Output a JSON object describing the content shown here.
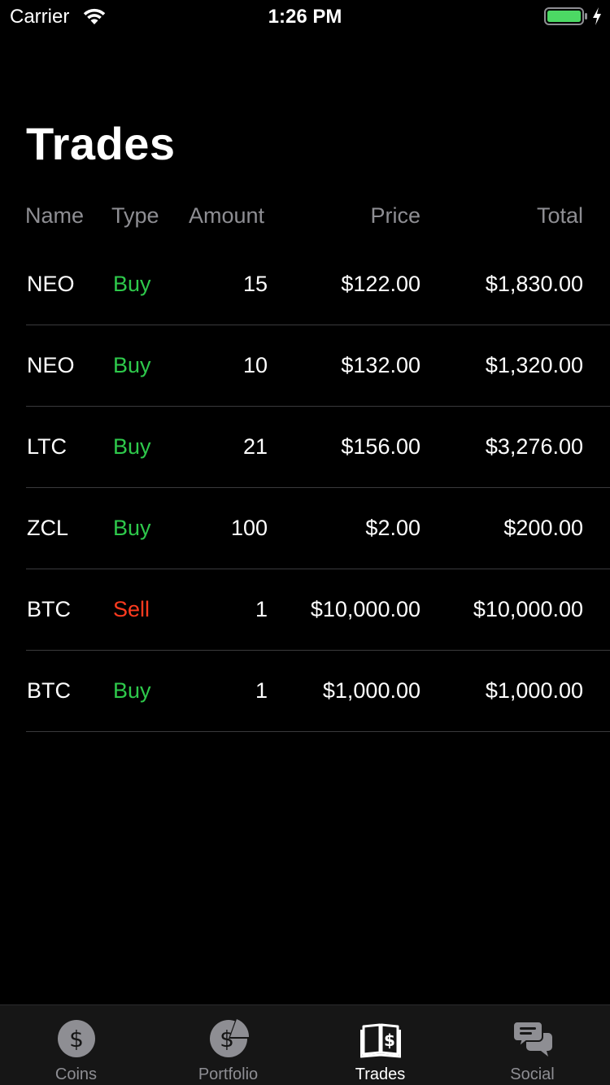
{
  "status_bar": {
    "carrier": "Carrier",
    "time": "1:26 PM",
    "battery_color": "#4cd964"
  },
  "page": {
    "title": "Trades"
  },
  "table": {
    "headers": {
      "name": "Name",
      "type": "Type",
      "amount": "Amount",
      "price": "Price",
      "total": "Total"
    },
    "rows": [
      {
        "name": "NEO",
        "type": "Buy",
        "amount": "15",
        "price": "$122.00",
        "total": "$1,830.00"
      },
      {
        "name": "NEO",
        "type": "Buy",
        "amount": "10",
        "price": "$132.00",
        "total": "$1,320.00"
      },
      {
        "name": "LTC",
        "type": "Buy",
        "amount": "21",
        "price": "$156.00",
        "total": "$3,276.00"
      },
      {
        "name": "ZCL",
        "type": "Buy",
        "amount": "100",
        "price": "$2.00",
        "total": "$200.00"
      },
      {
        "name": "BTC",
        "type": "Sell",
        "amount": "1",
        "price": "$10,000.00",
        "total": "$10,000.00"
      },
      {
        "name": "BTC",
        "type": "Buy",
        "amount": "1",
        "price": "$1,000.00",
        "total": "$1,000.00"
      }
    ],
    "colors": {
      "buy": "#2ec94b",
      "sell": "#ff3b1f"
    }
  },
  "tab_bar": {
    "active": "trades",
    "tabs": [
      {
        "id": "coins",
        "label": "Coins",
        "icon": "coin-icon"
      },
      {
        "id": "portfolio",
        "label": "Portfolio",
        "icon": "portfolio-pie-icon"
      },
      {
        "id": "trades",
        "label": "Trades",
        "icon": "ledger-book-icon"
      },
      {
        "id": "social",
        "label": "Social",
        "icon": "chat-bubbles-icon"
      }
    ]
  }
}
